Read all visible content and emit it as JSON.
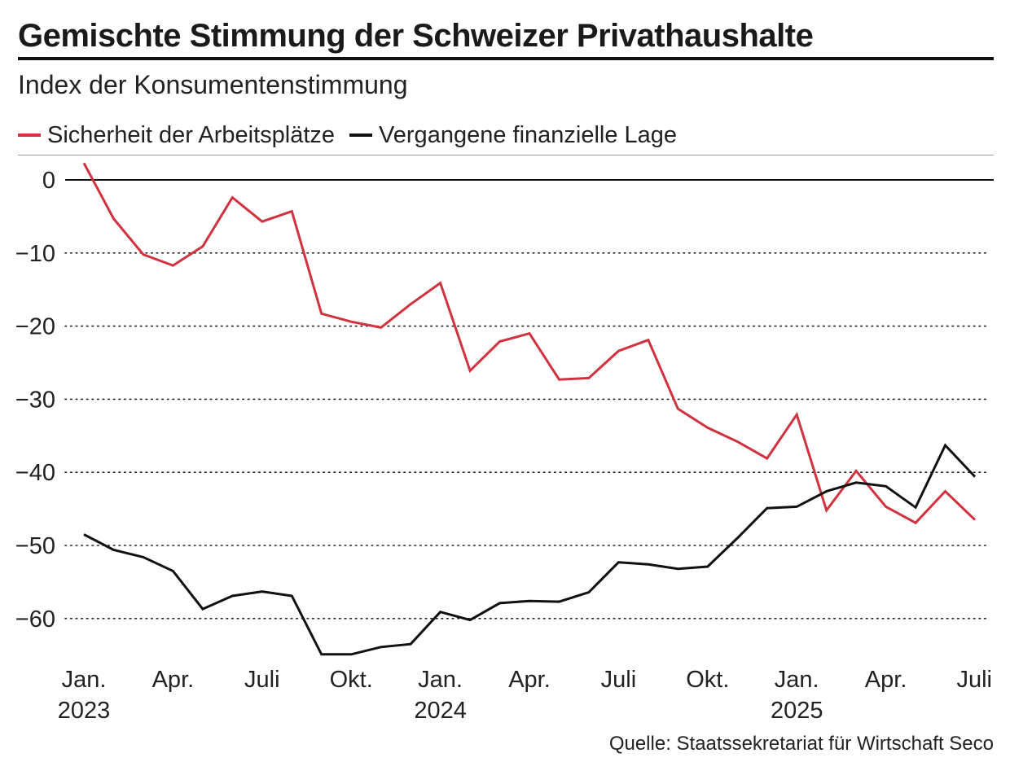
{
  "title": "Gemischte Stimmung der Schweizer Privathaushalte",
  "subtitle": "Index der Konsumentenstimmung",
  "source": "Quelle: Staatssekretariat für Wirtschaft Seco",
  "colors": {
    "red": "#d0323f",
    "black": "#111111"
  },
  "chart_data": {
    "type": "line",
    "title": "Gemischte Stimmung der Schweizer Privathaushalte",
    "subtitle": "Index der Konsumentenstimmung",
    "x": [
      "2023-01",
      "2023-02",
      "2023-03",
      "2023-04",
      "2023-05",
      "2023-06",
      "2023-07",
      "2023-08",
      "2023-09",
      "2023-10",
      "2023-11",
      "2023-12",
      "2024-01",
      "2024-02",
      "2024-03",
      "2024-04",
      "2024-05",
      "2024-06",
      "2024-07",
      "2024-08",
      "2024-09",
      "2024-10",
      "2024-11",
      "2024-12",
      "2025-01",
      "2025-02",
      "2025-03",
      "2025-04",
      "2025-05",
      "2025-06",
      "2025-07"
    ],
    "series": [
      {
        "name": "Sicherheit der Arbeitsplätze",
        "color": "#d0323f",
        "values": [
          2.3,
          -5.3,
          -10.2,
          -11.7,
          -9.1,
          -2.4,
          -5.7,
          -4.3,
          -18.3,
          -19.4,
          -20.2,
          -17.0,
          -14.1,
          -26.1,
          -22.1,
          -21.0,
          -27.3,
          -27.1,
          -23.4,
          -21.9,
          -31.3,
          -33.9,
          -35.8,
          -38.1,
          -32.1,
          -45.2,
          -39.8,
          -44.7,
          -46.9,
          -42.6,
          -46.5
        ]
      },
      {
        "name": "Vergangene finanzielle Lage",
        "color": "#111111",
        "values": [
          -48.5,
          -50.6,
          -51.6,
          -53.5,
          -58.7,
          -56.9,
          -56.3,
          -56.9,
          -64.9,
          -64.9,
          -63.9,
          -63.5,
          -59.1,
          -60.2,
          -57.9,
          -57.6,
          -57.7,
          -56.4,
          -52.3,
          -52.6,
          -53.2,
          -52.9,
          -49.0,
          -44.9,
          -44.7,
          -42.6,
          -41.4,
          -41.9,
          -44.8,
          -36.3,
          -40.6
        ]
      }
    ],
    "ylim": [
      -66,
      3
    ],
    "yticks": [
      0,
      -10,
      -20,
      -30,
      -40,
      -50,
      -60
    ],
    "ytick_labels": [
      "0",
      "−10",
      "−20",
      "−30",
      "−40",
      "−50",
      "−60"
    ],
    "xticks": [
      {
        "at": "2023-01",
        "label": "Jan.",
        "year": "2023"
      },
      {
        "at": "2023-04",
        "label": "Apr.",
        "year": ""
      },
      {
        "at": "2023-07",
        "label": "Juli",
        "year": ""
      },
      {
        "at": "2023-10",
        "label": "Okt.",
        "year": ""
      },
      {
        "at": "2024-01",
        "label": "Jan.",
        "year": "2024"
      },
      {
        "at": "2024-04",
        "label": "Apr.",
        "year": ""
      },
      {
        "at": "2024-07",
        "label": "Juli",
        "year": ""
      },
      {
        "at": "2024-10",
        "label": "Okt.",
        "year": ""
      },
      {
        "at": "2025-01",
        "label": "Jan.",
        "year": "2025"
      },
      {
        "at": "2025-04",
        "label": "Apr.",
        "year": ""
      },
      {
        "at": "2025-07",
        "label": "Juli",
        "year": ""
      }
    ],
    "grid": "horizontal dotted",
    "legend": "top-left"
  }
}
